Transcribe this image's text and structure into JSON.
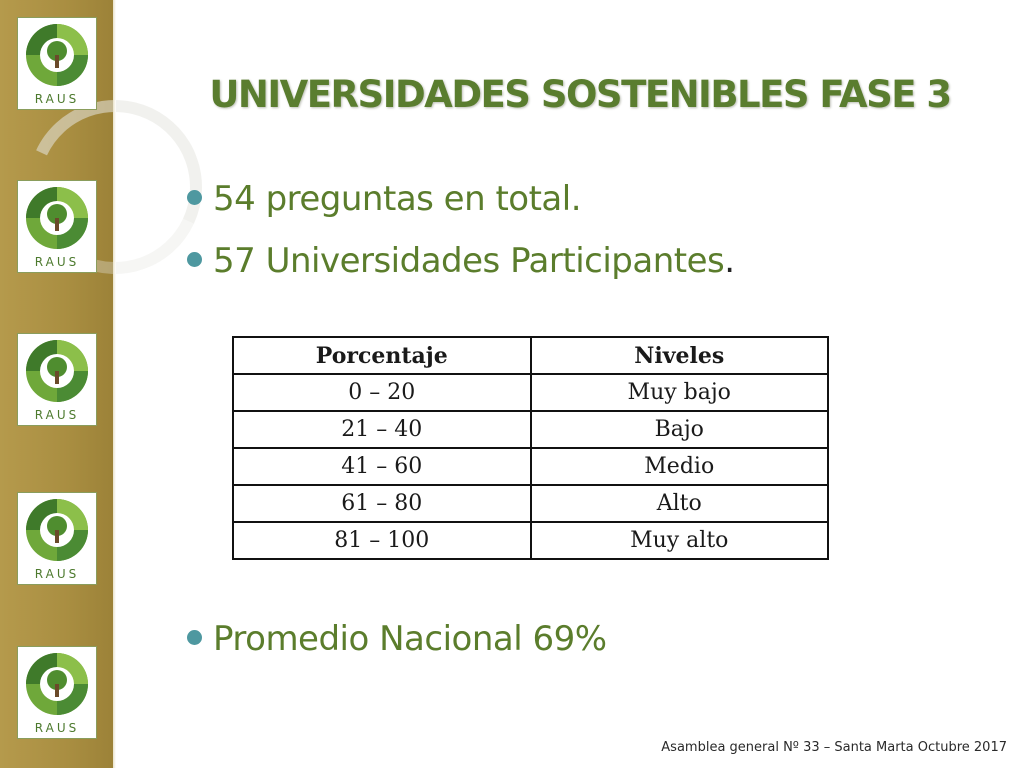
{
  "slide": {
    "title": "UNIVERSIDADES SOSTENIBLES FASE 3",
    "bullets": [
      "54 preguntas en total.",
      "57 Universidades Participantes"
    ],
    "bullet_2_period": ".",
    "bullet_3": "Promedio Nacional 69%",
    "footer": "Asamblea general  Nº 33 – Santa Marta Octubre 2017"
  },
  "sidebar": {
    "logo_text": "RAUS",
    "logo_count": 5
  },
  "table": {
    "headers": [
      "Porcentaje",
      "Niveles"
    ],
    "rows": [
      [
        "0 – 20",
        "Muy bajo"
      ],
      [
        "21 – 40",
        "Bajo"
      ],
      [
        "41 – 60",
        "Medio"
      ],
      [
        "61 – 80",
        "Alto"
      ],
      [
        "81 – 100",
        "Muy alto"
      ]
    ]
  },
  "colors": {
    "title": "#5a7d2f",
    "bullet_text": "#5b7d2c",
    "bullet_dot": "#4e98a0",
    "sidebar": "#a98e41"
  }
}
